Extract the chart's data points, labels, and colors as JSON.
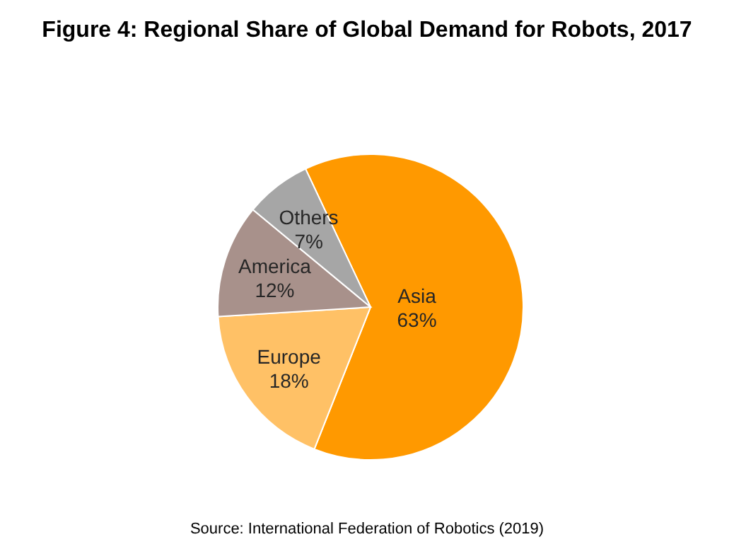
{
  "chart_data": {
    "type": "pie",
    "title": "Figure 4: Regional Share of Global Demand for Robots, 2017",
    "categories": [
      "Asia",
      "Europe",
      "America",
      "Others"
    ],
    "values": [
      63,
      18,
      12,
      7
    ],
    "colors": [
      "#ff9900",
      "#ffc166",
      "#a8918b",
      "#a6a6a6"
    ],
    "value_labels": [
      "63%",
      "18%",
      "12%",
      "7%"
    ],
    "legend": false,
    "annotations": [
      "Source: International Federation of Robotics (2019)"
    ]
  }
}
